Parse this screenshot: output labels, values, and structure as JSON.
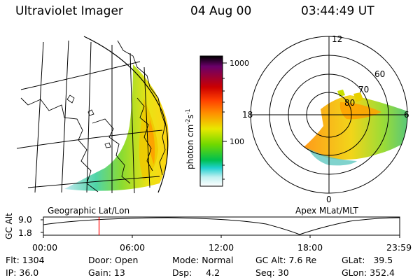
{
  "header": {
    "title": "Ultraviolet Imager",
    "date": "04 Aug 00",
    "time": "03:44:49 UT"
  },
  "colorbar": {
    "label": "photon cm",
    "label_sup1": "-2",
    "label_mid": "s",
    "label_sup2": "-1",
    "ticks": [
      "1000",
      "100"
    ],
    "stops": [
      "#000000",
      "#6a006a",
      "#cc0000",
      "#ff4000",
      "#ff9000",
      "#e8e800",
      "#70d800",
      "#00c050",
      "#20d0d0",
      "#c0f0f0",
      "#ffffff"
    ]
  },
  "left_map": {
    "caption": "Geographic Lat/Lon"
  },
  "polar_plot": {
    "caption": "Apex MLat/MLT",
    "mlt_labels": {
      "top": "12",
      "left": "18",
      "right": "6",
      "bottom": "0"
    },
    "lat_labels": [
      "60",
      "70",
      "80"
    ]
  },
  "altitude_plot": {
    "ylabel": "GC Alt",
    "ytick_high": "9.0",
    "ytick_low": "1.8",
    "xticks": [
      "00:00",
      "06:00",
      "12:00",
      "18:00",
      "23:59"
    ],
    "marker_time": "03:44:49",
    "marker_color": "#ff0000"
  },
  "info": {
    "flt": "Flt: 1304",
    "ip": "IP: 36.0",
    "door": "Door: Open",
    "gain": "Gain: 13",
    "mode": "Mode: Normal",
    "dsp": "Dsp:     4.2",
    "gc_alt": "GC Alt: 7.6 Re",
    "seq": "Seq: 30",
    "glat": "GLat:   39.5",
    "glon": "GLon: 352.4"
  }
}
